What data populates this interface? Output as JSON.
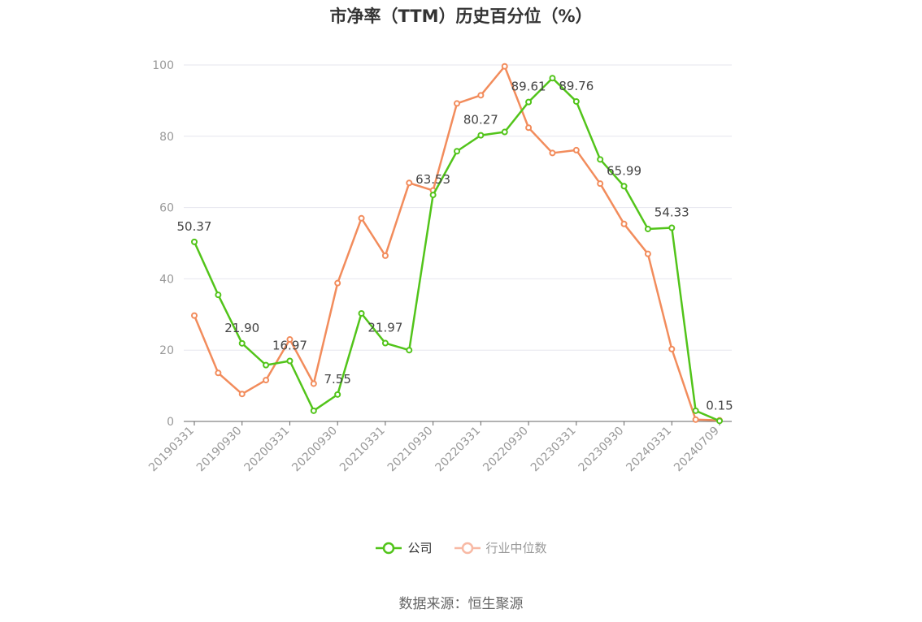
{
  "title": "市净率（TTM）历史百分位（%）",
  "source": "数据来源：恒生聚源",
  "colors": {
    "company": "#52c41a",
    "industry": "#f28c5c",
    "industry_legend": "#f8b9a4",
    "axis": "#999999",
    "grid": "#e6e6ee"
  },
  "legend": [
    {
      "name": "公司",
      "color": "#52c41a",
      "marker": "circle",
      "active": true
    },
    {
      "name": "行业中位数",
      "color": "#f8b9a4",
      "marker": "circle",
      "active": false
    }
  ],
  "chart_data": {
    "type": "line",
    "title": "市净率（TTM）历史百分位（%）",
    "ylim": [
      0,
      100
    ],
    "yticks": [
      0,
      20,
      40,
      60,
      80,
      100
    ],
    "grid": true,
    "legend_position": "bottom",
    "x_tick_labels": [
      "20190331",
      "20190930",
      "20200331",
      "20200930",
      "20210331",
      "20210930",
      "20220331",
      "20220930",
      "20230331",
      "20230930",
      "20240331",
      "20240709"
    ],
    "series": [
      {
        "name": "公司",
        "color": "#52c41a",
        "values": [
          50.37,
          35.5,
          21.9,
          15.8,
          16.97,
          3.0,
          7.55,
          30.3,
          21.97,
          20.0,
          63.53,
          75.8,
          80.27,
          81.2,
          89.61,
          96.3,
          89.76,
          73.5,
          65.99,
          54.0,
          54.33,
          3.0,
          0.15
        ],
        "labels": {
          "0": "50.37",
          "2": "21.90",
          "4": "16.97",
          "6": "7.55",
          "8": "21.97",
          "10": "63.53",
          "12": "80.27",
          "14": "89.61",
          "16": "89.76",
          "18": "65.99",
          "20": "54.33",
          "22": "0.15"
        }
      },
      {
        "name": "行业中位数",
        "color": "#f28c5c",
        "values": [
          29.7,
          13.6,
          7.7,
          11.6,
          23.0,
          10.6,
          38.8,
          57.0,
          46.5,
          66.9,
          64.8,
          89.2,
          91.5,
          99.6,
          82.4,
          75.3,
          76.1,
          66.7,
          55.4,
          47.0,
          20.3,
          0.5,
          0.3
        ]
      }
    ]
  }
}
